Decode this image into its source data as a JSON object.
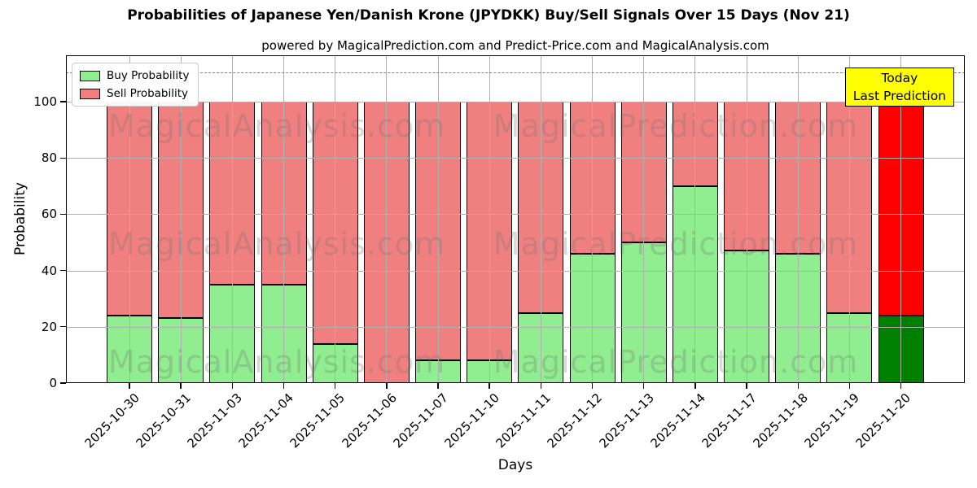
{
  "chart_data": {
    "type": "bar",
    "stacked": true,
    "title": "Probabilities of Japanese Yen/Danish Krone (JPYDKK) Buy/Sell Signals Over 15 Days (Nov 21)",
    "subtitle": "powered by MagicalPrediction.com and Predict-Price.com and MagicalAnalysis.com",
    "xlabel": "Days",
    "ylabel": "Probability",
    "categories": [
      "2025-10-30",
      "2025-10-31",
      "2025-11-03",
      "2025-11-04",
      "2025-11-05",
      "2025-11-06",
      "2025-11-07",
      "2025-11-10",
      "2025-11-11",
      "2025-11-12",
      "2025-11-13",
      "2025-11-14",
      "2025-11-17",
      "2025-11-18",
      "2025-11-19",
      "2025-11-20"
    ],
    "series": [
      {
        "name": "Buy Probability",
        "color": "#90EE90",
        "values": [
          24,
          23,
          35,
          35,
          14,
          0,
          8,
          8,
          25,
          46,
          50,
          70,
          47,
          46,
          25,
          24
        ]
      },
      {
        "name": "Sell Probability",
        "color": "#F08080",
        "values": [
          76,
          77,
          65,
          65,
          86,
          100,
          92,
          92,
          75,
          54,
          50,
          30,
          53,
          54,
          75,
          76
        ]
      }
    ],
    "today_bar": {
      "category": "2025-11-20",
      "index": 15,
      "buy_color": "#008000",
      "sell_color": "#FF0000"
    },
    "annotation": {
      "line1": "Today",
      "line2": "Last Prediction",
      "bg_color": "#FFFF00"
    },
    "dashed_line_y": 110,
    "yticks": [
      0,
      20,
      40,
      60,
      80,
      100
    ],
    "ylim": [
      0,
      116
    ],
    "grid": true,
    "legend_position": "upper left",
    "watermark_left": "MagicalAnalysis.com",
    "watermark_right": "MagicalPrediction.com"
  }
}
